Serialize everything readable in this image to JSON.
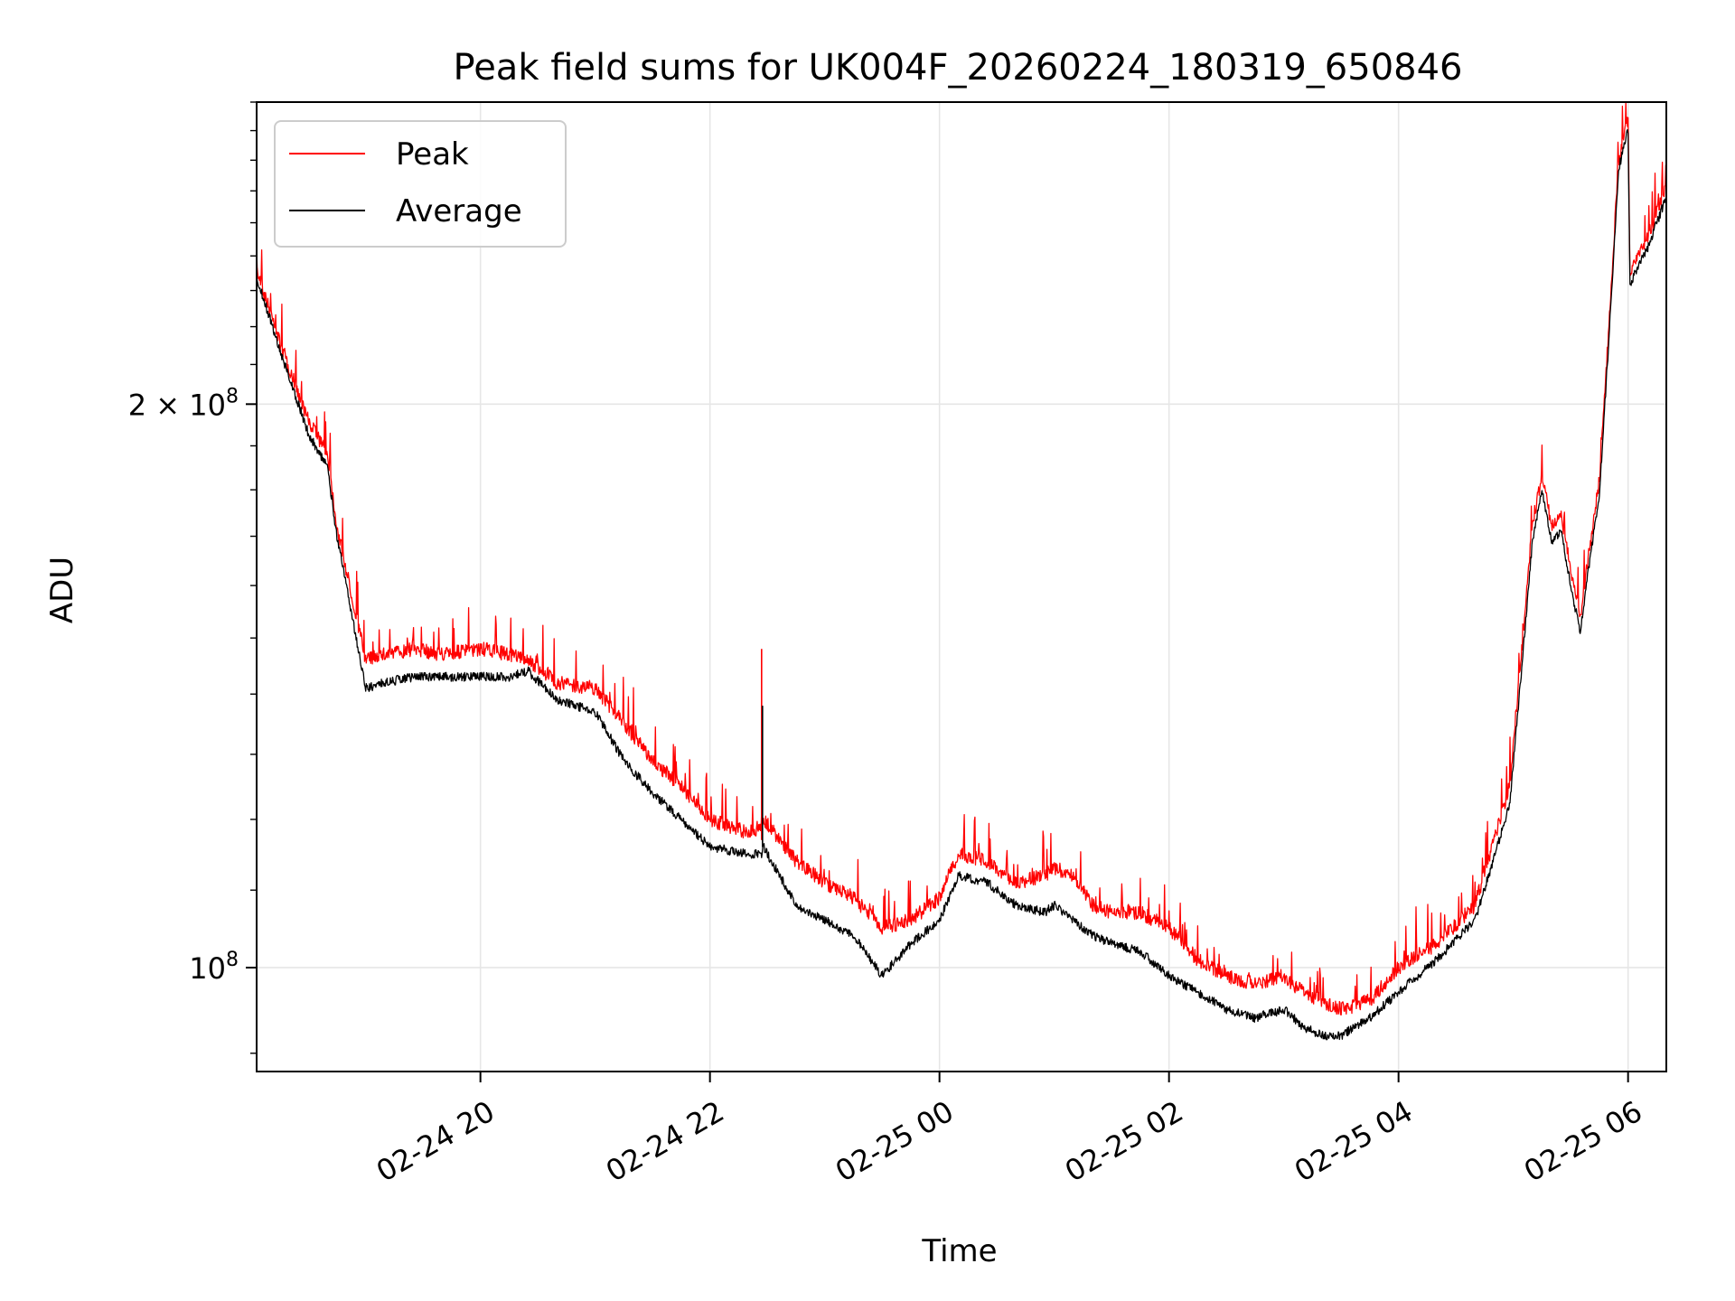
{
  "chart_data": {
    "type": "line",
    "title": "Peak field sums for UK004F_20260224_180319_650846",
    "xlabel": "Time",
    "ylabel": "ADU",
    "y_scale": "log",
    "ylim": [
      88000000,
      290000000
    ],
    "xlim": [
      "2026-02-24 18:03",
      "2026-02-25 06:20"
    ],
    "grid": true,
    "legend_position": "upper-left",
    "x_ticks": [
      {
        "t": "2026-02-24 20:00",
        "label": "02-24 20"
      },
      {
        "t": "2026-02-24 22:00",
        "label": "02-24 22"
      },
      {
        "t": "2026-02-25 00:00",
        "label": "02-25 00"
      },
      {
        "t": "2026-02-25 02:00",
        "label": "02-25 02"
      },
      {
        "t": "2026-02-25 04:00",
        "label": "02-25 04"
      },
      {
        "t": "2026-02-25 06:00",
        "label": "02-25 06"
      }
    ],
    "y_ticks": [
      {
        "v": 200000000,
        "base": "2 × 10",
        "exp": "8"
      },
      {
        "v": 100000000,
        "base": "10",
        "exp": "8"
      }
    ],
    "series": [
      {
        "name": "Peak",
        "color": "#ff0000",
        "x": [
          "2026-02-24 18:03",
          "2026-02-24 18:15",
          "2026-02-24 18:30",
          "2026-02-24 18:40",
          "2026-02-24 18:45",
          "2026-02-24 19:00",
          "2026-02-24 19:10",
          "2026-02-24 19:25",
          "2026-02-24 19:40",
          "2026-02-24 20:00",
          "2026-02-24 20:15",
          "2026-02-24 20:25",
          "2026-02-24 20:40",
          "2026-02-24 21:00",
          "2026-02-24 21:15",
          "2026-02-24 21:30",
          "2026-02-24 21:45",
          "2026-02-24 22:00",
          "2026-02-24 22:20",
          "2026-02-24 22:27",
          "2026-02-24 22:28",
          "2026-02-24 22:45",
          "2026-02-24 23:00",
          "2026-02-24 23:15",
          "2026-02-24 23:30",
          "2026-02-24 23:45",
          "2026-02-25 00:00",
          "2026-02-25 00:10",
          "2026-02-25 00:25",
          "2026-02-25 00:40",
          "2026-02-25 00:55",
          "2026-02-25 01:00",
          "2026-02-25 01:10",
          "2026-02-25 01:20",
          "2026-02-25 01:30",
          "2026-02-25 01:45",
          "2026-02-25 02:00",
          "2026-02-25 02:15",
          "2026-02-25 02:30",
          "2026-02-25 02:45",
          "2026-02-25 03:00",
          "2026-02-25 03:10",
          "2026-02-25 03:20",
          "2026-02-25 03:30",
          "2026-02-25 03:45",
          "2026-02-25 04:00",
          "2026-02-25 04:20",
          "2026-02-25 04:40",
          "2026-02-25 04:58",
          "2026-02-25 05:05",
          "2026-02-25 05:10",
          "2026-02-25 05:15",
          "2026-02-25 05:20",
          "2026-02-25 05:25",
          "2026-02-25 05:30",
          "2026-02-25 05:35",
          "2026-02-25 05:40",
          "2026-02-25 05:45",
          "2026-02-25 05:50",
          "2026-02-25 05:55",
          "2026-02-25 06:00",
          "2026-02-25 06:01",
          "2026-02-25 06:10",
          "2026-02-25 06:20"
        ],
        "values": [
          236000000,
          216000000,
          196000000,
          188000000,
          172000000,
          146000000,
          147000000,
          148000000,
          147000000,
          148000000,
          147000000,
          146000000,
          142000000,
          141000000,
          135000000,
          129000000,
          125000000,
          120000000,
          118000000,
          119000000,
          120000000,
          114000000,
          111000000,
          109000000,
          105000000,
          106000000,
          109000000,
          115000000,
          114000000,
          111000000,
          112000000,
          113000000,
          112000000,
          108000000,
          107000000,
          107000000,
          105000000,
          101000000,
          99000000,
          98000000,
          99000000,
          97000000,
          96000000,
          95000000,
          96000000,
          100000000,
          103000000,
          108000000,
          125000000,
          150000000,
          173000000,
          183000000,
          172000000,
          174000000,
          163000000,
          154000000,
          168000000,
          182000000,
          220000000,
          270000000,
          284000000,
          236000000,
          245000000,
          262000000
        ]
      },
      {
        "name": "Average",
        "color": "#000000",
        "x": [
          "2026-02-24 18:03",
          "2026-02-24 18:15",
          "2026-02-24 18:30",
          "2026-02-24 18:40",
          "2026-02-24 18:45",
          "2026-02-24 19:00",
          "2026-02-24 19:10",
          "2026-02-24 19:25",
          "2026-02-24 19:40",
          "2026-02-24 20:00",
          "2026-02-24 20:15",
          "2026-02-24 20:25",
          "2026-02-24 20:40",
          "2026-02-24 21:00",
          "2026-02-24 21:15",
          "2026-02-24 21:30",
          "2026-02-24 21:45",
          "2026-02-24 22:00",
          "2026-02-24 22:20",
          "2026-02-24 22:27",
          "2026-02-24 22:28",
          "2026-02-24 22:45",
          "2026-02-24 23:00",
          "2026-02-24 23:15",
          "2026-02-24 23:30",
          "2026-02-24 23:45",
          "2026-02-25 00:00",
          "2026-02-25 00:10",
          "2026-02-25 00:25",
          "2026-02-25 00:40",
          "2026-02-25 00:55",
          "2026-02-25 01:00",
          "2026-02-25 01:10",
          "2026-02-25 01:20",
          "2026-02-25 01:30",
          "2026-02-25 01:45",
          "2026-02-25 02:00",
          "2026-02-25 02:15",
          "2026-02-25 02:30",
          "2026-02-25 02:45",
          "2026-02-25 03:00",
          "2026-02-25 03:10",
          "2026-02-25 03:20",
          "2026-02-25 03:30",
          "2026-02-25 03:45",
          "2026-02-25 04:00",
          "2026-02-25 04:20",
          "2026-02-25 04:40",
          "2026-02-25 04:58",
          "2026-02-25 05:05",
          "2026-02-25 05:10",
          "2026-02-25 05:15",
          "2026-02-25 05:20",
          "2026-02-25 05:25",
          "2026-02-25 05:30",
          "2026-02-25 05:35",
          "2026-02-25 05:40",
          "2026-02-25 05:45",
          "2026-02-25 05:50",
          "2026-02-25 05:55",
          "2026-02-25 06:00",
          "2026-02-25 06:01",
          "2026-02-25 06:10",
          "2026-02-25 06:20"
        ],
        "values": [
          234000000,
          214000000,
          193000000,
          185000000,
          170000000,
          141000000,
          142000000,
          143000000,
          143000000,
          143000000,
          143000000,
          144000000,
          139000000,
          137000000,
          129000000,
          124000000,
          120000000,
          116000000,
          115000000,
          115000000,
          116000000,
          108000000,
          106000000,
          104000000,
          99000000,
          103000000,
          106000000,
          112000000,
          111000000,
          108000000,
          107000000,
          108000000,
          106000000,
          104000000,
          103000000,
          102000000,
          99000000,
          97000000,
          95000000,
          94000000,
          95000000,
          93000000,
          92000000,
          92000000,
          94000000,
          97000000,
          101000000,
          106000000,
          122000000,
          147000000,
          169000000,
          180000000,
          169000000,
          171000000,
          160000000,
          151000000,
          165000000,
          179000000,
          217000000,
          267000000,
          280000000,
          232000000,
          242000000,
          258000000
        ]
      }
    ]
  }
}
